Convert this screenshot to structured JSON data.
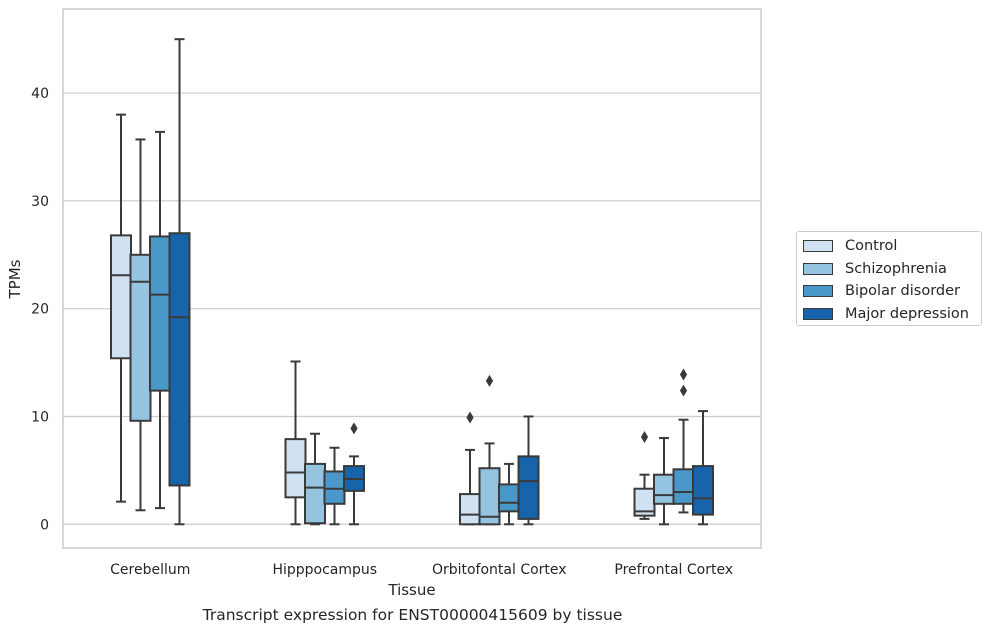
{
  "caption": "Transcript expression for ENST00000415609 by tissue",
  "chart_data": {
    "type": "box",
    "title": "",
    "xlabel": "Tissue",
    "ylabel": "TPMs",
    "ylim": [
      -2.2,
      47.8
    ],
    "yticks": [
      0,
      10,
      20,
      30,
      40
    ],
    "grid": "horizontal",
    "legend_position": "right",
    "categories": [
      "Cerebellum",
      "Hipppocampus",
      "Orbitofontal Cortex",
      "Prefrontal Cortex"
    ],
    "series": [
      {
        "name": "Control",
        "color": "#d0e1f2",
        "boxes": [
          {
            "whislo": 2.1,
            "q1": 15.4,
            "med": 23.1,
            "q3": 26.8,
            "whishi": 38.0,
            "fliers": []
          },
          {
            "whislo": 0.0,
            "q1": 2.5,
            "med": 4.8,
            "q3": 7.9,
            "whishi": 15.1,
            "fliers": []
          },
          {
            "whislo": 0.0,
            "q1": 0.0,
            "med": 0.9,
            "q3": 2.8,
            "whishi": 6.9,
            "fliers": [
              9.9
            ]
          },
          {
            "whislo": 0.5,
            "q1": 0.8,
            "med": 1.2,
            "q3": 3.3,
            "whishi": 4.6,
            "fliers": [
              8.1
            ]
          }
        ]
      },
      {
        "name": "Schizophrenia",
        "color": "#94c4df",
        "boxes": [
          {
            "whislo": 1.3,
            "q1": 9.6,
            "med": 22.5,
            "q3": 25.0,
            "whishi": 35.7,
            "fliers": []
          },
          {
            "whislo": 0.0,
            "q1": 0.1,
            "med": 3.4,
            "q3": 5.6,
            "whishi": 8.4,
            "fliers": []
          },
          {
            "whislo": 0.0,
            "q1": 0.0,
            "med": 0.7,
            "q3": 5.2,
            "whishi": 7.5,
            "fliers": [
              13.3
            ]
          },
          {
            "whislo": 0.0,
            "q1": 1.9,
            "med": 2.7,
            "q3": 4.6,
            "whishi": 8.0,
            "fliers": []
          }
        ]
      },
      {
        "name": "Bipolar disorder",
        "color": "#4a98c9",
        "boxes": [
          {
            "whislo": 1.5,
            "q1": 12.4,
            "med": 21.3,
            "q3": 26.7,
            "whishi": 36.4,
            "fliers": []
          },
          {
            "whislo": 0.0,
            "q1": 1.9,
            "med": 3.3,
            "q3": 4.9,
            "whishi": 7.1,
            "fliers": []
          },
          {
            "whislo": 0.0,
            "q1": 1.2,
            "med": 2.0,
            "q3": 3.7,
            "whishi": 5.6,
            "fliers": []
          },
          {
            "whislo": 1.1,
            "q1": 1.9,
            "med": 3.0,
            "q3": 5.1,
            "whishi": 9.7,
            "fliers": [
              12.4,
              13.9
            ]
          }
        ]
      },
      {
        "name": "Major depression",
        "color": "#1764ab",
        "boxes": [
          {
            "whislo": 0.0,
            "q1": 3.6,
            "med": 19.2,
            "q3": 27.0,
            "whishi": 45.0,
            "fliers": []
          },
          {
            "whislo": 0.0,
            "q1": 3.1,
            "med": 4.2,
            "q3": 5.4,
            "whishi": 6.3,
            "fliers": [
              8.9
            ]
          },
          {
            "whislo": 0.0,
            "q1": 0.5,
            "med": 4.0,
            "q3": 6.3,
            "whishi": 10.0,
            "fliers": []
          },
          {
            "whislo": 0.0,
            "q1": 0.9,
            "med": 2.4,
            "q3": 5.4,
            "whishi": 10.5,
            "fliers": []
          }
        ]
      }
    ]
  }
}
